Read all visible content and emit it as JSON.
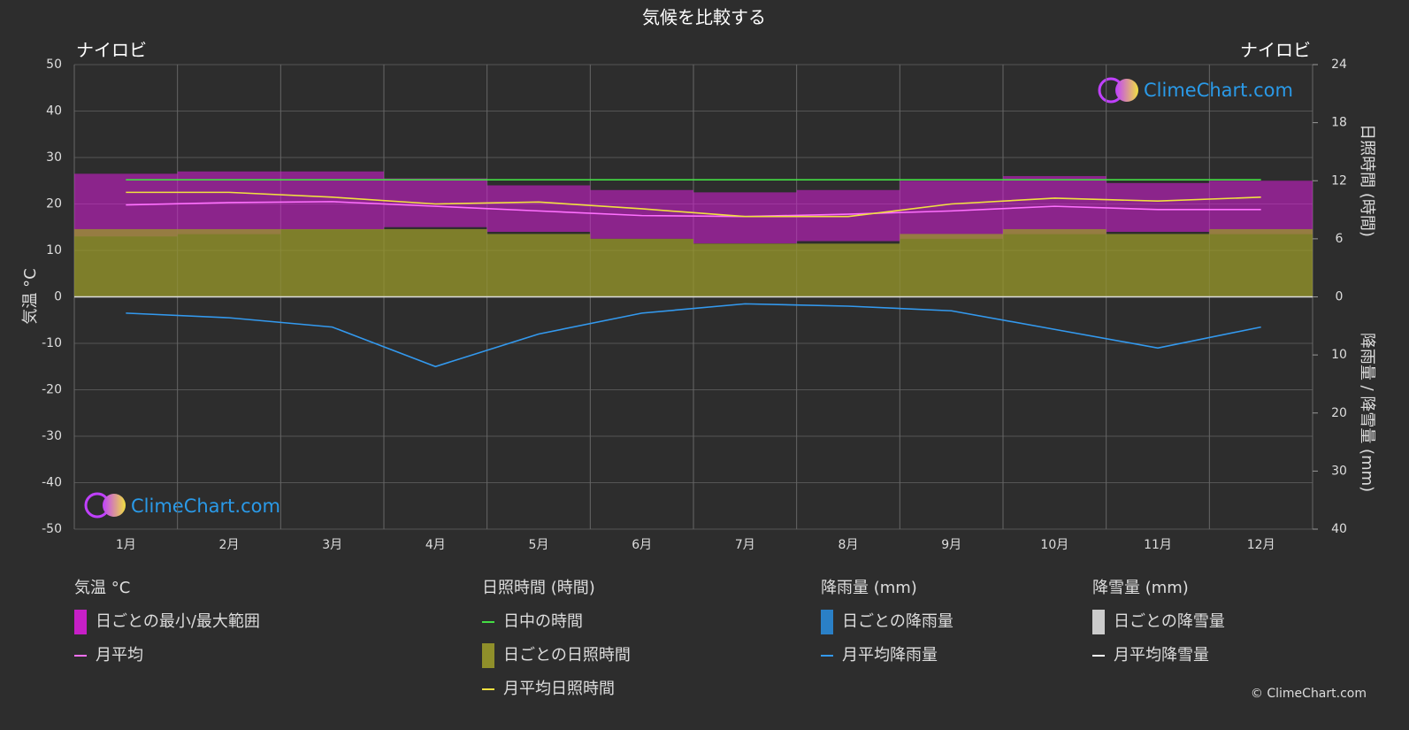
{
  "chart_data": {
    "type": "line",
    "title": "気候を比較する",
    "location_left": "ナイロビ",
    "location_right": "ナイロビ",
    "y_label": "気温 °C",
    "y2_label": "日照時間 (時間)",
    "y3_label": "降雨量 / 降雪量 (mm)",
    "categories": [
      "1月",
      "2月",
      "3月",
      "4月",
      "5月",
      "6月",
      "7月",
      "8月",
      "9月",
      "10月",
      "11月",
      "12月"
    ],
    "ylim": [
      -50,
      50
    ],
    "yticks": [
      -50,
      -40,
      -30,
      -20,
      -10,
      0,
      10,
      20,
      30,
      40,
      50
    ],
    "y2lim": [
      0,
      24
    ],
    "y2ticks": [
      0,
      6,
      12,
      18,
      24
    ],
    "y3lim": [
      0,
      40
    ],
    "y3ticks": [
      0,
      10,
      20,
      30,
      40
    ],
    "grid": true,
    "groups": [
      {
        "title": "気温 °C",
        "series": [
          {
            "name": "日ごとの最小/最大範囲",
            "kind": "range",
            "axis": "y",
            "color": "#d81ed8",
            "min": [
              13,
              13.5,
              14.5,
              15,
              14,
              12.5,
              11.5,
              12,
              12.5,
              13.5,
              14,
              13.5
            ],
            "max": [
              26.5,
              27,
              27,
              25.5,
              24,
              23,
              22.5,
              23,
              25,
              26,
              24.5,
              25
            ]
          },
          {
            "name": "月平均",
            "kind": "line",
            "axis": "y",
            "color": "#ff70ff",
            "values": [
              19.8,
              20.3,
              20.5,
              19.5,
              18.5,
              17.5,
              17.3,
              17.8,
              18.5,
              19.5,
              18.8,
              18.8
            ]
          }
        ]
      },
      {
        "title": "日照時間 (時間)",
        "series": [
          {
            "name": "日中の時間",
            "kind": "line",
            "axis": "y2",
            "color": "#44dd44",
            "values": [
              12.1,
              12.1,
              12.1,
              12.1,
              12.1,
              12.1,
              12.1,
              12.1,
              12.1,
              12.1,
              12.1,
              12.1
            ]
          },
          {
            "name": "日ごとの日照時間",
            "kind": "area",
            "axis": "y2",
            "color": "#9a9a2a",
            "values": [
              7,
              7,
              7,
              7,
              6.5,
              6,
              5.5,
              5.5,
              6.5,
              7,
              6.5,
              7
            ]
          },
          {
            "name": "月平均日照時間",
            "kind": "line",
            "axis": "y2",
            "color": "#f0e040",
            "values": [
              10.8,
              10.8,
              10.3,
              9.6,
              9.8,
              9.1,
              8.3,
              8.3,
              9.6,
              10.2,
              9.9,
              10.3
            ]
          }
        ]
      },
      {
        "title": "降雨量 (mm)",
        "series": [
          {
            "name": "日ごとの降雨量",
            "kind": "bar",
            "color": "#2a8ad8"
          },
          {
            "name": "月平均降雨量",
            "kind": "line",
            "axis": "y3",
            "color": "#3399ee",
            "values": [
              2.8,
              3.6,
              5.2,
              12,
              6.4,
              2.8,
              1.2,
              1.6,
              2.4,
              5.6,
              8.8,
              5.2
            ]
          }
        ]
      },
      {
        "title": "降雪量 (mm)",
        "series": [
          {
            "name": "日ごとの降雪量",
            "kind": "bar",
            "color": "#dddddd"
          },
          {
            "name": "月平均降雪量",
            "kind": "line",
            "color": "#ffffff"
          }
        ]
      }
    ],
    "watermark": "ClimeChart.com",
    "copyright": "© ClimeChart.com"
  }
}
